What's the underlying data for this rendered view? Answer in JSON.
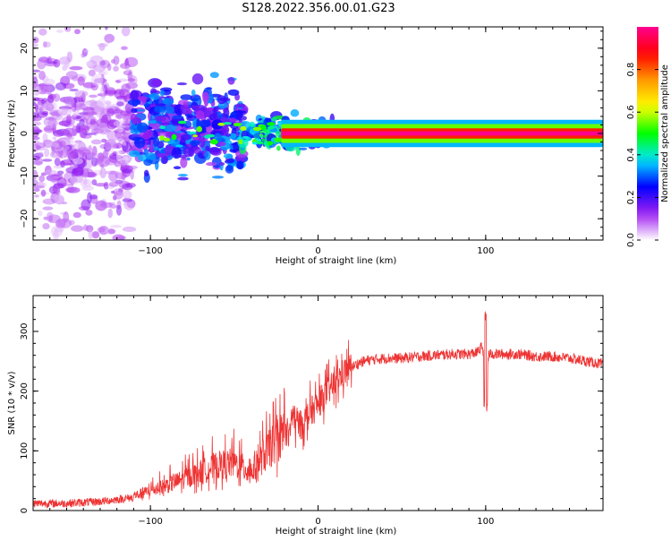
{
  "title": "S128.2022.356.00.01.G23",
  "chart_data": [
    {
      "type": "heatmap",
      "title": "",
      "xlabel": "Height of straight line (km)",
      "ylabel": "Frequency (Hz)",
      "xlim": [
        -170,
        170
      ],
      "ylim": [
        -25,
        25
      ],
      "xticks": [
        -100,
        0,
        100
      ],
      "yticks": [
        -20,
        -10,
        0,
        10,
        20
      ],
      "colorbar": {
        "label": "Normalized spectral amplitude",
        "range": [
          0,
          1
        ],
        "ticks": [
          "0.0",
          "0.2",
          "0.4",
          "0.6",
          "0.8"
        ],
        "colormap": "rainbow",
        "colors": [
          "#ffffff",
          "#a020f0",
          "#0000ff",
          "#00e5ff",
          "#00ff00",
          "#ffff00",
          "#ff9900",
          "#ff0000",
          "#ff0090"
        ]
      },
      "regions": [
        {
          "x": [
            -170,
            -110
          ],
          "y": [
            -25,
            25
          ],
          "amplitude": [
            0.02,
            0.15
          ]
        },
        {
          "x": [
            -110,
            -45
          ],
          "y": [
            -10,
            12
          ],
          "amplitude": [
            0.1,
            0.35
          ]
        },
        {
          "x": [
            -45,
            10
          ],
          "y": [
            -4,
            4
          ],
          "amplitude": [
            0.2,
            0.5
          ]
        },
        {
          "x": [
            10,
            170
          ],
          "y": [
            -1,
            1
          ],
          "amplitude": [
            0.9,
            1.0
          ]
        }
      ],
      "grid": false
    },
    {
      "type": "line",
      "title": "",
      "xlabel": "Height of straight line (km)",
      "ylabel": "SNR (10 * v/v)",
      "xlim": [
        -170,
        170
      ],
      "ylim": [
        0,
        360
      ],
      "xticks": [
        -100,
        0,
        100
      ],
      "yticks": [
        0,
        100,
        200,
        300
      ],
      "color": "#ee3333",
      "series": [
        {
          "x": [
            -170,
            -150,
            -130,
            -110,
            -100,
            -90,
            -80,
            -70,
            -60,
            -50,
            -40,
            -30,
            -20,
            -15,
            -10,
            -5,
            0,
            5,
            10,
            15,
            20,
            25,
            30,
            40,
            50,
            60,
            70,
            80,
            90,
            95,
            98,
            100,
            102,
            105,
            110,
            120,
            130,
            140,
            150,
            160,
            170
          ],
          "values": [
            12,
            12,
            15,
            22,
            30,
            38,
            48,
            58,
            68,
            72,
            58,
            90,
            120,
            150,
            140,
            160,
            175,
            195,
            210,
            228,
            240,
            248,
            252,
            255,
            255,
            258,
            260,
            262,
            262,
            265,
            275,
            230,
            262,
            262,
            262,
            262,
            258,
            258,
            255,
            250,
            245
          ]
        }
      ],
      "grid": false
    }
  ]
}
